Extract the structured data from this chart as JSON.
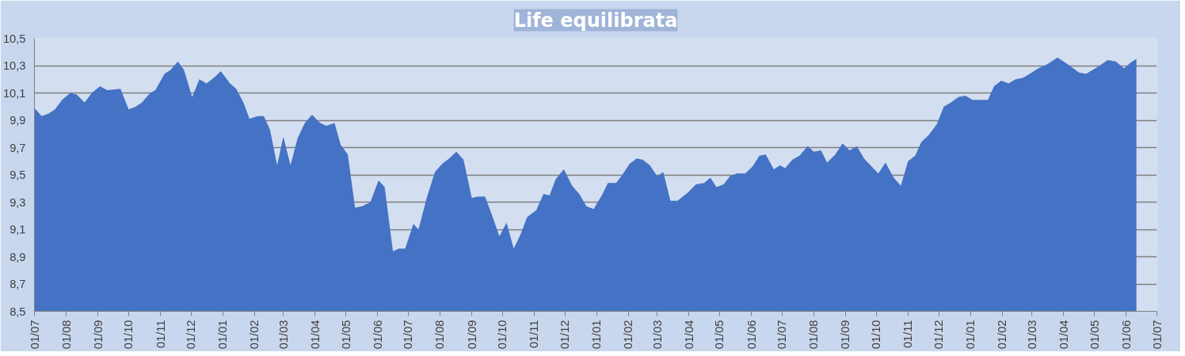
{
  "chart_data": {
    "type": "area",
    "title": "Life equilibrata",
    "x": [
      "2001-07-01",
      "2001-07-08",
      "2001-07-15",
      "2001-07-21",
      "2001-07-28",
      "2001-08-05",
      "2001-08-11",
      "2001-08-19",
      "2001-08-26",
      "2001-09-03",
      "2001-09-10",
      "2001-09-23",
      "2001-10-01",
      "2001-10-08",
      "2001-10-14",
      "2001-10-22",
      "2001-10-27",
      "2001-11-05",
      "2001-11-11",
      "2001-11-18",
      "2001-11-24",
      "2001-12-02",
      "2001-12-09",
      "2001-12-16",
      "2001-12-23",
      "2001-12-30",
      "2002-01-08",
      "2002-01-14",
      "2002-01-21",
      "2002-01-27",
      "2002-02-04",
      "2002-02-10",
      "2002-02-16",
      "2002-02-23",
      "2002-03-01",
      "2002-03-08",
      "2002-03-15",
      "2002-03-22",
      "2002-03-29",
      "2002-04-06",
      "2002-04-12",
      "2002-04-20",
      "2002-04-26",
      "2002-05-03",
      "2002-05-10",
      "2002-05-17",
      "2002-05-25",
      "2002-06-02",
      "2002-06-08",
      "2002-06-16",
      "2002-06-22",
      "2002-06-28",
      "2002-07-06",
      "2002-07-11",
      "2002-07-19",
      "2002-07-27",
      "2002-08-03",
      "2002-08-10",
      "2002-08-17",
      "2002-08-24",
      "2002-09-01",
      "2002-09-07",
      "2002-09-14",
      "2002-09-21",
      "2002-09-28",
      "2002-10-05",
      "2002-10-12",
      "2002-10-19",
      "2002-10-25",
      "2002-11-03",
      "2002-11-10",
      "2002-11-16",
      "2002-11-22",
      "2002-11-30",
      "2002-12-08",
      "2002-12-15",
      "2002-12-22",
      "2002-12-29",
      "2003-01-06",
      "2003-01-12",
      "2003-01-20",
      "2003-01-26",
      "2003-02-02",
      "2003-02-09",
      "2003-02-15",
      "2003-02-22",
      "2003-03-01",
      "2003-03-07",
      "2003-03-14",
      "2003-03-21",
      "2003-03-31",
      "2003-04-08",
      "2003-04-16",
      "2003-04-22",
      "2003-04-28",
      "2003-05-05",
      "2003-05-11",
      "2003-05-18",
      "2003-05-26",
      "2003-06-02",
      "2003-06-09",
      "2003-06-15",
      "2003-06-23",
      "2003-06-29",
      "2003-07-04",
      "2003-07-11",
      "2003-07-18",
      "2003-07-26",
      "2003-08-01",
      "2003-08-08",
      "2003-08-14",
      "2003-08-22",
      "2003-08-29",
      "2003-09-05",
      "2003-09-12",
      "2003-09-19",
      "2003-09-28",
      "2003-10-03",
      "2003-10-10",
      "2003-10-18",
      "2003-10-25",
      "2003-11-01",
      "2003-11-08",
      "2003-11-14",
      "2003-11-21",
      "2003-11-29",
      "2003-12-06",
      "2003-12-13",
      "2003-12-20",
      "2003-12-27",
      "2004-01-03",
      "2004-01-18",
      "2004-01-24",
      "2004-01-31",
      "2004-02-07",
      "2004-02-14",
      "2004-02-21",
      "2004-02-28",
      "2004-03-07",
      "2004-03-16",
      "2004-03-26",
      "2004-04-05",
      "2004-04-16",
      "2004-04-23",
      "2004-05-04",
      "2004-05-14",
      "2004-05-22",
      "2004-05-30",
      "2004-06-05",
      "2004-06-11"
    ],
    "series": [
      {
        "color": "#4472c4",
        "values": [
          9.99,
          9.93,
          9.95,
          9.98,
          10.05,
          10.1,
          10.09,
          10.03,
          10.1,
          10.15,
          10.12,
          10.13,
          9.98,
          10.0,
          10.03,
          10.1,
          10.12,
          10.24,
          10.27,
          10.33,
          10.27,
          10.07,
          10.2,
          10.17,
          10.21,
          10.26,
          10.17,
          10.13,
          10.03,
          9.91,
          9.93,
          9.93,
          9.83,
          9.57,
          9.78,
          9.57,
          9.77,
          9.88,
          9.94,
          9.88,
          9.86,
          9.88,
          9.72,
          9.65,
          9.26,
          9.27,
          9.3,
          9.46,
          9.41,
          8.94,
          8.96,
          8.96,
          9.14,
          9.1,
          9.33,
          9.52,
          9.58,
          9.62,
          9.67,
          9.61,
          9.33,
          9.34,
          9.34,
          9.2,
          9.05,
          9.15,
          8.96,
          9.07,
          9.19,
          9.24,
          9.36,
          9.35,
          9.47,
          9.54,
          9.42,
          9.36,
          9.27,
          9.25,
          9.35,
          9.44,
          9.44,
          9.5,
          9.58,
          9.62,
          9.61,
          9.57,
          9.49,
          9.52,
          9.31,
          9.31,
          9.37,
          9.43,
          9.44,
          9.48,
          9.41,
          9.43,
          9.49,
          9.51,
          9.51,
          9.56,
          9.64,
          9.65,
          9.54,
          9.57,
          9.55,
          9.61,
          9.64,
          9.71,
          9.67,
          9.68,
          9.59,
          9.65,
          9.73,
          9.68,
          9.71,
          9.62,
          9.55,
          9.51,
          9.59,
          9.48,
          9.42,
          9.6,
          9.64,
          9.74,
          9.79,
          9.87,
          10.0,
          10.03,
          10.07,
          10.08,
          10.05,
          10.05,
          10.15,
          10.19,
          10.17,
          10.2,
          10.21,
          10.24,
          10.28,
          10.31,
          10.36,
          10.31,
          10.25,
          10.24,
          10.29,
          10.34,
          10.33,
          10.28,
          10.32,
          10.35
        ]
      }
    ],
    "xlim": [
      "2001-07-01",
      "2004-07-01"
    ],
    "xticks": [
      {
        "value": "2001-07-01",
        "label": "01/07"
      },
      {
        "value": "2001-08-01",
        "label": "01/08"
      },
      {
        "value": "2001-09-01",
        "label": "01/09"
      },
      {
        "value": "2001-10-01",
        "label": "01/10"
      },
      {
        "value": "2001-11-01",
        "label": "01/11"
      },
      {
        "value": "2001-12-01",
        "label": "01/12"
      },
      {
        "value": "2002-01-01",
        "label": "01/01"
      },
      {
        "value": "2002-02-01",
        "label": "01/02"
      },
      {
        "value": "2002-03-01",
        "label": "01/03"
      },
      {
        "value": "2002-04-01",
        "label": "01/04"
      },
      {
        "value": "2002-05-01",
        "label": "01/05"
      },
      {
        "value": "2002-06-01",
        "label": "01/06"
      },
      {
        "value": "2002-07-01",
        "label": "01/07"
      },
      {
        "value": "2002-08-01",
        "label": "01/08"
      },
      {
        "value": "2002-09-01",
        "label": "01/09"
      },
      {
        "value": "2002-10-01",
        "label": "01/10"
      },
      {
        "value": "2002-11-01",
        "label": "01/11"
      },
      {
        "value": "2002-12-01",
        "label": "01/12"
      },
      {
        "value": "2003-01-01",
        "label": "01/01"
      },
      {
        "value": "2003-02-01",
        "label": "01/02"
      },
      {
        "value": "2003-03-01",
        "label": "01/03"
      },
      {
        "value": "2003-04-01",
        "label": "01/04"
      },
      {
        "value": "2003-05-01",
        "label": "01/05"
      },
      {
        "value": "2003-06-01",
        "label": "01/06"
      },
      {
        "value": "2003-07-01",
        "label": "01/07"
      },
      {
        "value": "2003-08-01",
        "label": "01/08"
      },
      {
        "value": "2003-09-01",
        "label": "01/09"
      },
      {
        "value": "2003-10-01",
        "label": "01/10"
      },
      {
        "value": "2003-11-01",
        "label": "01/11"
      },
      {
        "value": "2003-12-01",
        "label": "01/12"
      },
      {
        "value": "2004-01-01",
        "label": "01/01"
      },
      {
        "value": "2004-02-01",
        "label": "01/02"
      },
      {
        "value": "2004-03-01",
        "label": "01/03"
      },
      {
        "value": "2004-04-01",
        "label": "01/04"
      },
      {
        "value": "2004-05-01",
        "label": "01/05"
      },
      {
        "value": "2004-06-01",
        "label": "01/06"
      },
      {
        "value": "2004-07-01",
        "label": "01/07"
      }
    ],
    "ylim": [
      8.5,
      10.5
    ],
    "yticks": [
      {
        "value": 8.5,
        "label": "8,5"
      },
      {
        "value": 8.7,
        "label": "8,7"
      },
      {
        "value": 8.9,
        "label": "8,9"
      },
      {
        "value": 9.1,
        "label": "9,1"
      },
      {
        "value": 9.3,
        "label": "9,3"
      },
      {
        "value": 9.5,
        "label": "9,5"
      },
      {
        "value": 9.7,
        "label": "9,7"
      },
      {
        "value": 9.9,
        "label": "9,9"
      },
      {
        "value": 10.1,
        "label": "10,1"
      },
      {
        "value": 10.3,
        "label": "10,3"
      },
      {
        "value": 10.5,
        "label": "10,5"
      }
    ],
    "grid": "y"
  }
}
